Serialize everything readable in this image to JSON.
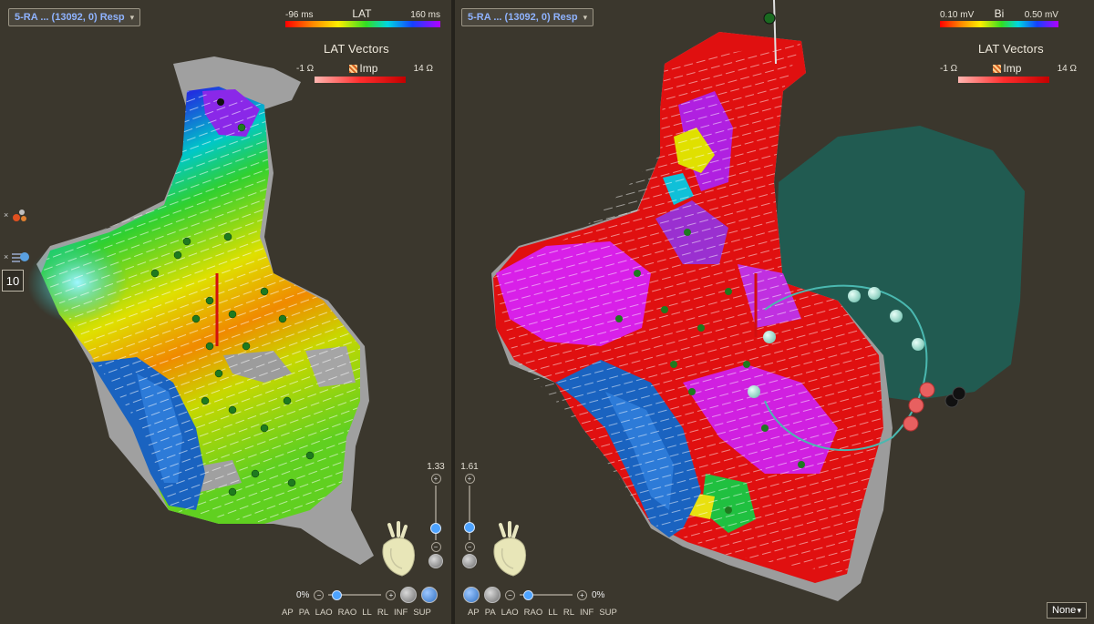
{
  "left": {
    "map_name": "5-RA ... (13092, 0) Resp",
    "legend": {
      "name": "LAT",
      "min": "-96 ms",
      "max": "160 ms"
    },
    "vectors_title": "LAT Vectors",
    "imp": {
      "label": "Imp",
      "min": "-1 Ω",
      "max": "14 Ω"
    },
    "side_count": "10",
    "zoom_value": "1.33",
    "zoom_level": 0.18,
    "opacity": "0%",
    "views": [
      "AP",
      "PA",
      "LAO",
      "RAO",
      "LL",
      "RL",
      "INF",
      "SUP"
    ]
  },
  "right": {
    "map_name": "5-RA ... (13092, 0) Resp",
    "legend": {
      "name": "Bi",
      "min": "0.10 mV",
      "max": "0.50 mV"
    },
    "vectors_title": "LAT Vectors",
    "imp": {
      "label": "Imp",
      "min": "-1 Ω",
      "max": "14 Ω"
    },
    "zoom_value": "1.61",
    "zoom_level": 0.2,
    "opacity": "0%",
    "views": [
      "AP",
      "PA",
      "LAO",
      "RAO",
      "LL",
      "RL",
      "INF",
      "SUP"
    ],
    "overlay_select": "None"
  },
  "icons": {
    "dropdown": "chevron-down-icon",
    "heart": "heart-orientation-icon",
    "catheter": "catheter-icon"
  },
  "colors": {
    "background": "#3b372d",
    "accent_blue": "#8fb3ff",
    "slider_knob": "#4da3ff"
  }
}
